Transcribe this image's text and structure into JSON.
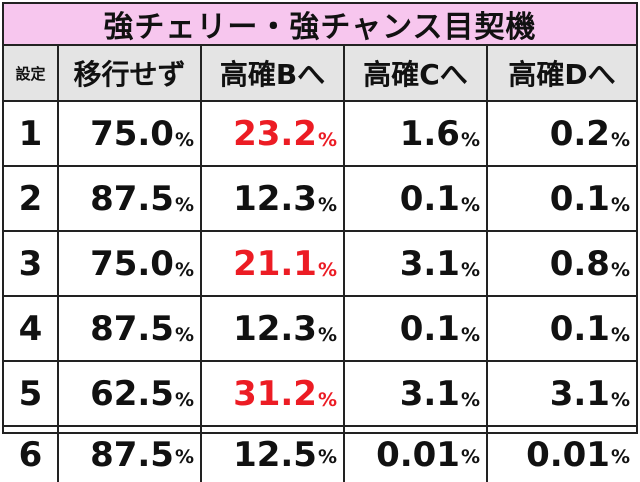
{
  "title": "強チェリー・強チャンス目契機",
  "headers": [
    "設定",
    "移行せず",
    "高確Bへ",
    "高確Cへ",
    "高確Dへ"
  ],
  "percent_sign": "%",
  "highlight_color": "#ec1c24",
  "rows": [
    {
      "setting": "1",
      "values": [
        "75.0",
        "23.2",
        "1.6",
        "0.2"
      ],
      "highlight": [
        false,
        true,
        false,
        false
      ]
    },
    {
      "setting": "2",
      "values": [
        "87.5",
        "12.3",
        "0.1",
        "0.1"
      ],
      "highlight": [
        false,
        false,
        false,
        false
      ]
    },
    {
      "setting": "3",
      "values": [
        "75.0",
        "21.1",
        "3.1",
        "0.8"
      ],
      "highlight": [
        false,
        true,
        false,
        false
      ]
    },
    {
      "setting": "4",
      "values": [
        "87.5",
        "12.3",
        "0.1",
        "0.1"
      ],
      "highlight": [
        false,
        false,
        false,
        false
      ]
    },
    {
      "setting": "5",
      "values": [
        "62.5",
        "31.2",
        "3.1",
        "3.1"
      ],
      "highlight": [
        false,
        true,
        false,
        false
      ]
    },
    {
      "setting": "6",
      "values": [
        "87.5",
        "12.5",
        "0.01",
        "0.01"
      ],
      "highlight": [
        false,
        false,
        false,
        false
      ]
    }
  ]
}
